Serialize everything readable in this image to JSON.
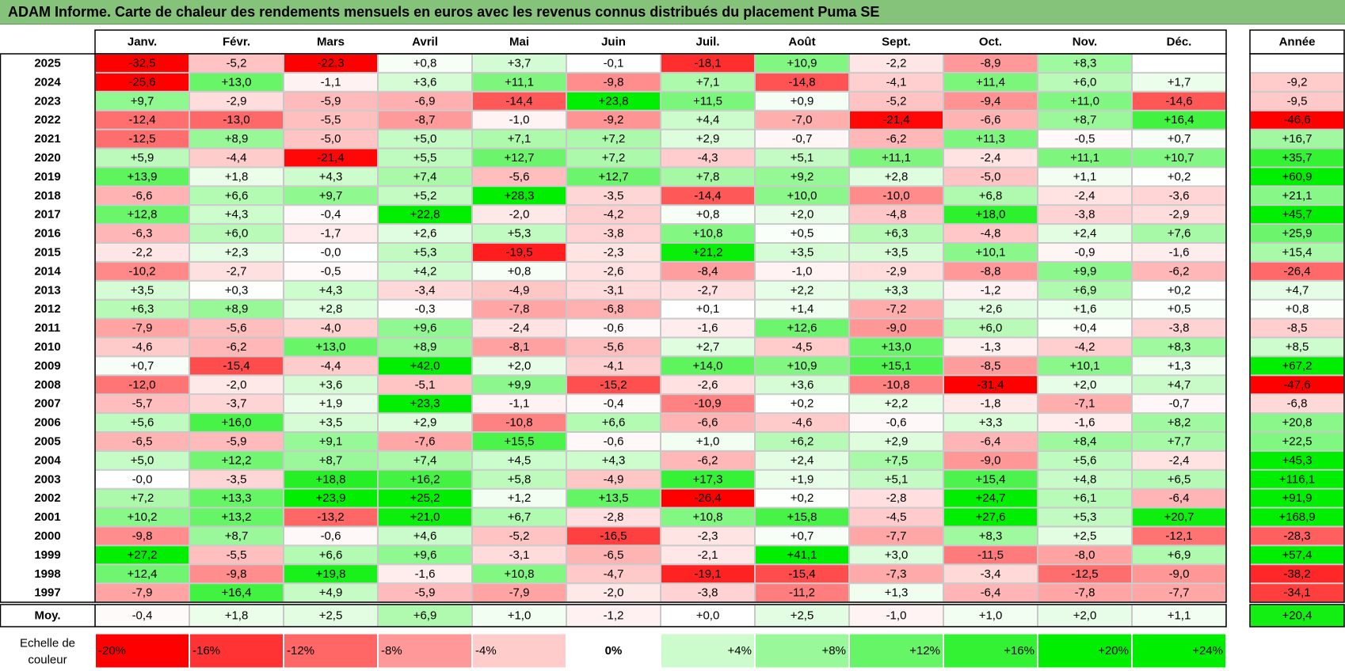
{
  "title": "ADAM Informe. Carte de chaleur des rendements mensuels en euros avec les revenus connus distribués du placement Puma SE",
  "chart_data": {
    "type": "heatmap",
    "title": "ADAM Informe. Carte de chaleur des rendements mensuels en euros avec les revenus connus distribués du placement Puma SE",
    "months": [
      "Janv.",
      "Févr.",
      "Mars",
      "Avril",
      "Mai",
      "Juin",
      "Juil.",
      "Août",
      "Sept.",
      "Oct.",
      "Nov.",
      "Déc."
    ],
    "year_header": "Année",
    "rows": [
      {
        "year": "2025",
        "values": [
          "-32,5",
          "-5,2",
          "-22,3",
          "+0,8",
          "+3,7",
          "-0,1",
          "-18,1",
          "+10,9",
          "-2,2",
          "-8,9",
          "+8,3",
          ""
        ],
        "annual": ""
      },
      {
        "year": "2024",
        "values": [
          "-25,6",
          "+13,0",
          "-1,1",
          "+3,6",
          "+11,1",
          "-9,8",
          "+7,1",
          "-14,8",
          "-4,1",
          "+11,4",
          "+6,0",
          "+1,7"
        ],
        "annual": "-9,2"
      },
      {
        "year": "2023",
        "values": [
          "+9,7",
          "-2,9",
          "-5,9",
          "-6,9",
          "-14,4",
          "+23,8",
          "+11,5",
          "+0,9",
          "-5,2",
          "-9,4",
          "+11,0",
          "-14,6"
        ],
        "annual": "-9,5"
      },
      {
        "year": "2022",
        "values": [
          "-12,4",
          "-13,0",
          "-5,5",
          "-8,7",
          "-1,0",
          "-9,2",
          "+4,4",
          "-7,0",
          "-21,4",
          "-6,6",
          "+8,7",
          "+16,4"
        ],
        "annual": "-46,6"
      },
      {
        "year": "2021",
        "values": [
          "-12,5",
          "+8,9",
          "-5,0",
          "+5,0",
          "+7,1",
          "+7,2",
          "+2,9",
          "-0,7",
          "-6,2",
          "+11,3",
          "-0,5",
          "+0,7"
        ],
        "annual": "+16,7"
      },
      {
        "year": "2020",
        "values": [
          "+5,9",
          "-4,4",
          "-21,4",
          "+5,5",
          "+12,7",
          "+7,2",
          "-4,3",
          "+5,1",
          "+11,1",
          "-2,4",
          "+11,1",
          "+10,7"
        ],
        "annual": "+35,7"
      },
      {
        "year": "2019",
        "values": [
          "+13,9",
          "+1,8",
          "+4,3",
          "+7,4",
          "-5,6",
          "+12,7",
          "+7,8",
          "+9,2",
          "+2,8",
          "-5,0",
          "+1,1",
          "+0,2"
        ],
        "annual": "+60,9"
      },
      {
        "year": "2018",
        "values": [
          "-6,6",
          "+6,6",
          "+9,7",
          "+5,2",
          "+28,3",
          "-3,5",
          "-14,4",
          "+10,0",
          "-10,0",
          "+6,8",
          "-2,4",
          "-3,6"
        ],
        "annual": "+21,1"
      },
      {
        "year": "2017",
        "values": [
          "+12,8",
          "+4,3",
          "-0,4",
          "+22,8",
          "-2,0",
          "-4,2",
          "+0,8",
          "+2,0",
          "-4,8",
          "+18,0",
          "-3,8",
          "-2,9"
        ],
        "annual": "+45,7"
      },
      {
        "year": "2016",
        "values": [
          "-6,3",
          "+6,0",
          "-1,7",
          "+2,6",
          "+5,3",
          "-3,8",
          "+10,8",
          "+0,5",
          "+6,3",
          "-4,8",
          "+2,4",
          "+7,6"
        ],
        "annual": "+25,9"
      },
      {
        "year": "2015",
        "values": [
          "-2,2",
          "+2,3",
          "-0,0",
          "+5,3",
          "-19,5",
          "-2,3",
          "+21,2",
          "+3,5",
          "+3,5",
          "+10,1",
          "-0,9",
          "-1,6"
        ],
        "annual": "+15,4"
      },
      {
        "year": "2014",
        "values": [
          "-10,2",
          "-2,7",
          "-0,5",
          "+4,2",
          "+0,8",
          "-2,6",
          "-8,4",
          "-1,0",
          "-2,9",
          "-8,8",
          "+9,9",
          "-6,2"
        ],
        "annual": "-26,4"
      },
      {
        "year": "2013",
        "values": [
          "+3,5",
          "+0,3",
          "+4,3",
          "-3,4",
          "-4,9",
          "-3,1",
          "-2,7",
          "+2,2",
          "+3,3",
          "-1,2",
          "+6,9",
          "+0,2"
        ],
        "annual": "+4,7"
      },
      {
        "year": "2012",
        "values": [
          "+6,3",
          "+8,9",
          "+2,8",
          "-0,3",
          "-7,8",
          "-6,8",
          "+0,1",
          "+1,4",
          "-7,2",
          "+2,6",
          "+1,6",
          "+0,5"
        ],
        "annual": "+0,8"
      },
      {
        "year": "2011",
        "values": [
          "-7,9",
          "-5,6",
          "-4,0",
          "+9,6",
          "-2,4",
          "-0,6",
          "-1,6",
          "+12,6",
          "-9,0",
          "+6,0",
          "+0,4",
          "-3,8"
        ],
        "annual": "-8,5"
      },
      {
        "year": "2010",
        "values": [
          "-4,6",
          "-6,2",
          "+13,0",
          "+8,9",
          "-8,1",
          "-5,6",
          "+2,7",
          "-4,5",
          "+13,0",
          "-1,3",
          "-4,2",
          "+8,3"
        ],
        "annual": "+8,5"
      },
      {
        "year": "2009",
        "values": [
          "+0,7",
          "-15,4",
          "-4,4",
          "+42,0",
          "+2,0",
          "-4,1",
          "+14,0",
          "+10,9",
          "+15,1",
          "-8,5",
          "+10,1",
          "+1,3"
        ],
        "annual": "+67,2"
      },
      {
        "year": "2008",
        "values": [
          "-12,0",
          "-2,0",
          "+3,6",
          "-5,1",
          "+9,9",
          "-15,2",
          "-2,6",
          "+3,6",
          "-10,8",
          "-31,4",
          "+2,0",
          "+4,7"
        ],
        "annual": "-47,6"
      },
      {
        "year": "2007",
        "values": [
          "-5,7",
          "-3,7",
          "+1,9",
          "+23,3",
          "-1,1",
          "-0,4",
          "-10,9",
          "+0,2",
          "+2,2",
          "-1,8",
          "-7,1",
          "-0,7"
        ],
        "annual": "-6,8"
      },
      {
        "year": "2006",
        "values": [
          "+5,6",
          "+16,0",
          "+3,5",
          "+2,9",
          "-10,8",
          "+6,6",
          "-6,6",
          "-4,6",
          "-0,6",
          "+3,3",
          "-1,6",
          "+8,2"
        ],
        "annual": "+20,8"
      },
      {
        "year": "2005",
        "values": [
          "-6,5",
          "-5,9",
          "+9,1",
          "-7,6",
          "+15,5",
          "-0,6",
          "+1,0",
          "+6,2",
          "+2,9",
          "-6,4",
          "+8,4",
          "+7,7"
        ],
        "annual": "+22,5"
      },
      {
        "year": "2004",
        "values": [
          "+5,0",
          "+12,2",
          "+8,7",
          "+7,4",
          "+4,5",
          "+4,3",
          "-6,2",
          "+2,4",
          "+7,5",
          "-9,0",
          "+5,6",
          "-2,4"
        ],
        "annual": "+45,3"
      },
      {
        "year": "2003",
        "values": [
          "-0,0",
          "-3,5",
          "+18,8",
          "+16,2",
          "+5,8",
          "-4,9",
          "+17,3",
          "+1,9",
          "+5,1",
          "+15,4",
          "+4,8",
          "+6,5"
        ],
        "annual": "+116,1"
      },
      {
        "year": "2002",
        "values": [
          "+7,2",
          "+13,3",
          "+23,9",
          "+25,2",
          "+1,2",
          "+13,5",
          "-26,4",
          "+0,2",
          "-2,8",
          "+24,7",
          "+6,1",
          "-6,4"
        ],
        "annual": "+91,9"
      },
      {
        "year": "2001",
        "values": [
          "+10,2",
          "+13,2",
          "-13,2",
          "+21,0",
          "+6,7",
          "-2,8",
          "+10,8",
          "+15,8",
          "-4,5",
          "+27,6",
          "+5,3",
          "+20,7"
        ],
        "annual": "+168,9"
      },
      {
        "year": "2000",
        "values": [
          "-9,8",
          "+8,7",
          "-0,6",
          "+4,6",
          "-5,2",
          "-16,5",
          "-2,3",
          "+0,7",
          "-7,7",
          "+8,3",
          "+2,5",
          "-12,1"
        ],
        "annual": "-28,3"
      },
      {
        "year": "1999",
        "values": [
          "+27,2",
          "-5,5",
          "+6,6",
          "+9,6",
          "-3,1",
          "-6,5",
          "-2,1",
          "+41,1",
          "+3,0",
          "-11,5",
          "-8,0",
          "+6,9"
        ],
        "annual": "+57,4"
      },
      {
        "year": "1998",
        "values": [
          "+12,4",
          "-9,8",
          "+19,8",
          "-1,6",
          "+10,8",
          "-4,7",
          "-19,1",
          "-15,4",
          "-7,3",
          "-3,4",
          "-12,5",
          "-9,0"
        ],
        "annual": "-38,2"
      },
      {
        "year": "1997",
        "values": [
          "-7,9",
          "+16,4",
          "+4,9",
          "-5,9",
          "-7,9",
          "-2,0",
          "-3,8",
          "-11,2",
          "+1,3",
          "-6,4",
          "-7,8",
          "-7,7"
        ],
        "annual": "-34,1"
      }
    ],
    "average": {
      "label": "Moy.",
      "values": [
        "-0,4",
        "+1,8",
        "+2,5",
        "+6,9",
        "+1,0",
        "-1,2",
        "+0,0",
        "+2,5",
        "-1,0",
        "+1,0",
        "+2,0",
        "+1,1"
      ],
      "annual": "+20,4"
    },
    "scale": {
      "label_line1": "Echelle de",
      "label_line2": "couleur",
      "items": [
        {
          "label": "-20%",
          "value": -20
        },
        {
          "label": "-16%",
          "value": -16
        },
        {
          "label": "-12%",
          "value": -12
        },
        {
          "label": "-8%",
          "value": -8
        },
        {
          "label": "-4%",
          "value": -4
        },
        {
          "label": "0%",
          "value": 0
        },
        {
          "label": "+4%",
          "value": 4
        },
        {
          "label": "+8%",
          "value": 8
        },
        {
          "label": "+12%",
          "value": 12
        },
        {
          "label": "+16%",
          "value": 16
        },
        {
          "label": "+20%",
          "value": 20
        },
        {
          "label": "+24%",
          "value": 24
        }
      ]
    },
    "colors": {
      "negative_max": "#ff0000",
      "neutral": "#ffffff",
      "positive_max": "#00ee00",
      "title_bar": "#86c37a"
    }
  }
}
